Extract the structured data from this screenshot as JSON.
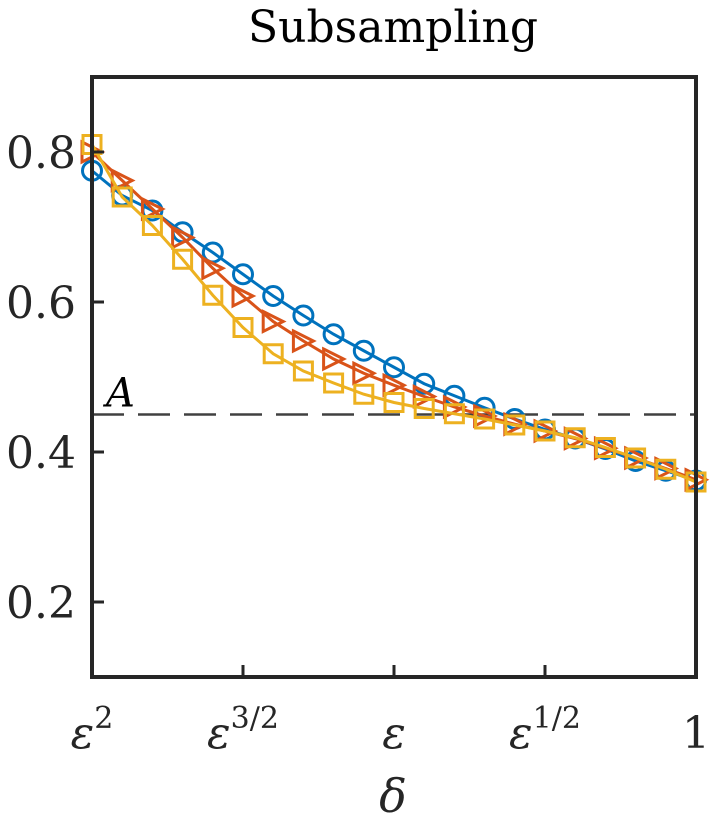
{
  "chart_data": {
    "type": "line",
    "title": "Subsampling",
    "xlabel": "δ",
    "ylabel": "",
    "x_tick_positions": [
      0,
      0.25,
      0.5,
      0.75,
      1
    ],
    "x_tick_labels": [
      {
        "base": "ε",
        "sup": "2"
      },
      {
        "base": "ε",
        "sup": "3/2"
      },
      {
        "base": "ε",
        "sup": ""
      },
      {
        "base": "ε",
        "sup": "1/2"
      },
      {
        "base": "1",
        "sup": ""
      }
    ],
    "y_ticks": [
      0.2,
      0.4,
      0.6,
      0.8
    ],
    "y_tick_labels": [
      "0.2",
      "0.4",
      "0.6",
      "0.8"
    ],
    "xlim": [
      0,
      1
    ],
    "ylim": [
      0.1,
      0.9
    ],
    "grid": false,
    "reference_line": {
      "y": 0.45,
      "label": "A",
      "color": "#404040"
    },
    "x": [
      0,
      0.05,
      0.1,
      0.15,
      0.2,
      0.25,
      0.3,
      0.35,
      0.4,
      0.45,
      0.5,
      0.55,
      0.6,
      0.65,
      0.7,
      0.75,
      0.8,
      0.85,
      0.9,
      0.95,
      1
    ],
    "series": [
      {
        "marker": "circle",
        "color": "#0072BD",
        "values": [
          0.775,
          0.742,
          0.722,
          0.693,
          0.666,
          0.637,
          0.608,
          0.582,
          0.557,
          0.535,
          0.513,
          0.491,
          0.475,
          0.459,
          0.444,
          0.43,
          0.418,
          0.404,
          0.388,
          0.375,
          0.362
        ]
      },
      {
        "marker": "triangle-right",
        "color": "#D95319",
        "values": [
          0.8,
          0.762,
          0.724,
          0.686,
          0.645,
          0.608,
          0.574,
          0.548,
          0.524,
          0.505,
          0.489,
          0.474,
          0.46,
          0.448,
          0.437,
          0.428,
          0.418,
          0.405,
          0.392,
          0.378,
          0.363
        ]
      },
      {
        "marker": "square",
        "color": "#EDB120",
        "values": [
          0.81,
          0.74,
          0.702,
          0.657,
          0.609,
          0.566,
          0.531,
          0.508,
          0.492,
          0.477,
          0.466,
          0.458,
          0.451,
          0.444,
          0.436,
          0.428,
          0.419,
          0.406,
          0.392,
          0.377,
          0.36
        ]
      }
    ]
  }
}
